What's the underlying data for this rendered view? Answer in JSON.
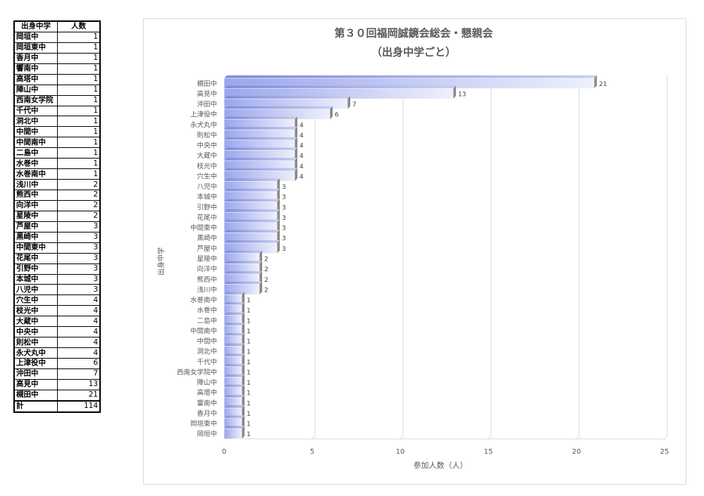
{
  "table": {
    "headers": [
      "出身中学",
      "人数"
    ],
    "rows": [
      [
        "岡垣中",
        "1"
      ],
      [
        "岡垣東中",
        "1"
      ],
      [
        "香月中",
        "1"
      ],
      [
        "響南中",
        "1"
      ],
      [
        "高塔中",
        "1"
      ],
      [
        "陣山中",
        "1"
      ],
      [
        "西南女学院",
        "1"
      ],
      [
        "千代中",
        "1"
      ],
      [
        "洞北中",
        "1"
      ],
      [
        "中間中",
        "1"
      ],
      [
        "中間南中",
        "1"
      ],
      [
        "二島中",
        "1"
      ],
      [
        "水巻中",
        "1"
      ],
      [
        "水巻南中",
        "1"
      ],
      [
        "浅川中",
        "2"
      ],
      [
        "熊西中",
        "2"
      ],
      [
        "向洋中",
        "2"
      ],
      [
        "星陵中",
        "2"
      ],
      [
        "芦屋中",
        "3"
      ],
      [
        "黒崎中",
        "3"
      ],
      [
        "中間東中",
        "3"
      ],
      [
        "花尾中",
        "3"
      ],
      [
        "引野中",
        "3"
      ],
      [
        "本城中",
        "3"
      ],
      [
        "八児中",
        "3"
      ],
      [
        "穴生中",
        "4"
      ],
      [
        "枝光中",
        "4"
      ],
      [
        "大蔵中",
        "4"
      ],
      [
        "中央中",
        "4"
      ],
      [
        "則松中",
        "4"
      ],
      [
        "永犬丸中",
        "4"
      ],
      [
        "上津役中",
        "6"
      ],
      [
        "沖田中",
        "7"
      ],
      [
        "高見中",
        "13"
      ],
      [
        "槻田中",
        "21"
      ]
    ],
    "total_label": "計",
    "total_value": "114"
  },
  "chart_data": {
    "type": "bar",
    "orientation": "horizontal",
    "title": "第３０回福岡誠鏡会総会・懇親会",
    "subtitle": "（出身中学ごと）",
    "xlabel": "参加人数（人）",
    "ylabel": "出身中学",
    "categories": [
      "槻田中",
      "高見中",
      "沖田中",
      "上津役中",
      "永犬丸中",
      "則松中",
      "中央中",
      "大蔵中",
      "枝光中",
      "穴生中",
      "八児中",
      "本城中",
      "引野中",
      "花尾中",
      "中間東中",
      "黒崎中",
      "芦屋中",
      "星陵中",
      "向洋中",
      "熊西中",
      "浅川中",
      "水巻南中",
      "水巻中",
      "二島中",
      "中間南中",
      "中間中",
      "洞北中",
      "千代中",
      "西南女学院中",
      "陣山中",
      "高塔中",
      "響南中",
      "香月中",
      "岡垣東中",
      "岡垣中"
    ],
    "values": [
      21,
      13,
      7,
      6,
      4,
      4,
      4,
      4,
      4,
      4,
      3,
      3,
      3,
      3,
      3,
      3,
      3,
      2,
      2,
      2,
      2,
      1,
      1,
      1,
      1,
      1,
      1,
      1,
      1,
      1,
      1,
      1,
      1,
      1,
      1
    ],
    "xlim": [
      0,
      25
    ],
    "xticks": [
      0,
      5,
      10,
      15,
      20,
      25
    ],
    "grid": true,
    "legend": "none",
    "colors": {
      "bar_light": "#eef0fc",
      "bar_dark": "#9aa6ec",
      "bar_edge": "#7a84c8",
      "shadow": "#8a8a8a",
      "grid": "#d9d9d9",
      "text": "#595959"
    }
  }
}
